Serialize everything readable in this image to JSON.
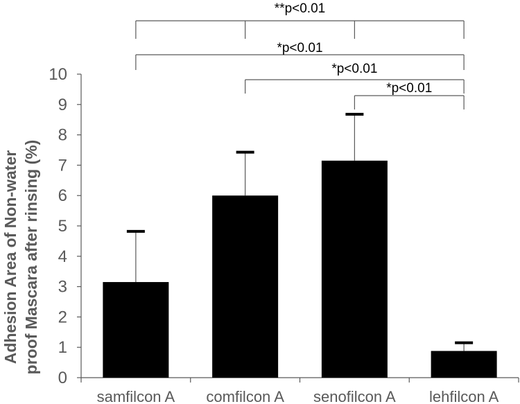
{
  "chart_data": {
    "type": "bar",
    "title": "",
    "xlabel": "",
    "ylabel_lines": [
      "Adhesion Area of Non-water",
      "proof Mascara after rinsing (%)"
    ],
    "categories": [
      "samfilcon A",
      "comfilcon A",
      "senofilcon A",
      "lehfilcon A"
    ],
    "values": [
      3.15,
      6.0,
      7.15,
      0.88
    ],
    "error_upper": [
      4.82,
      7.43,
      8.68,
      1.15
    ],
    "ylim": [
      0,
      10
    ],
    "yticks": [
      "0",
      "1",
      "2",
      "3",
      "4",
      "5",
      "6",
      "7",
      "8",
      "9",
      "10"
    ],
    "grid": false,
    "legend": "none",
    "significance": [
      {
        "label": "**p<0.01",
        "groups": [
          0,
          1,
          2,
          3
        ]
      },
      {
        "label": "*p<0.01",
        "groups": [
          0,
          3
        ]
      },
      {
        "label": "*p<0.01",
        "groups": [
          1,
          3
        ]
      },
      {
        "label": "*p<0.01",
        "groups": [
          2,
          3
        ]
      }
    ],
    "colors": {
      "bar": "#000000",
      "axis": "#595959",
      "text": "#595959",
      "bracket": "#595959"
    }
  }
}
